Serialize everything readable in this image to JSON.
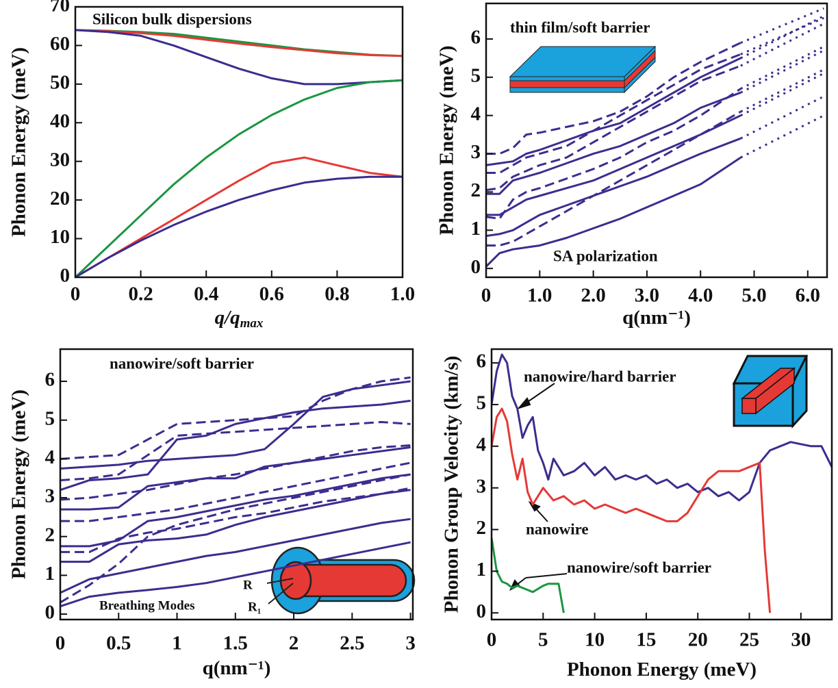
{
  "chart_data": [
    {
      "type": "line",
      "title": "Silicon bulk dispersions",
      "y_label": "Phonon Energy (meV)",
      "x_label": "q/q",
      "x_label_sub": "max",
      "xlim": [
        0,
        1
      ],
      "ylim": [
        0,
        70
      ],
      "xticks": [
        0,
        0.2,
        0.4,
        0.6,
        0.8,
        {
          "value": 1,
          "label": "1.0"
        }
      ],
      "yticks": [
        0,
        10,
        20,
        30,
        40,
        50,
        60,
        70
      ],
      "x": [
        0,
        0.1,
        0.2,
        0.3,
        0.4,
        0.5,
        0.6,
        0.7,
        0.8,
        0.9,
        1.0
      ],
      "series": [
        {
          "color": "#1a9641",
          "dash": "solid",
          "values": [
            64,
            63.8,
            63.5,
            63,
            62,
            61,
            60,
            59,
            58.3,
            57.6,
            57.3
          ]
        },
        {
          "color": "#e53935",
          "dash": "solid",
          "values": [
            64,
            63.7,
            63.2,
            62.5,
            61.5,
            60.5,
            59.6,
            58.8,
            58,
            57.5,
            57.3
          ]
        },
        {
          "color": "#3b2d8f",
          "dash": "solid",
          "values": [
            64,
            63.5,
            62.5,
            60,
            57,
            54,
            51.5,
            50,
            50,
            50.5,
            51
          ]
        },
        {
          "color": "#1a9641",
          "dash": "solid",
          "values": [
            0,
            8,
            16,
            24,
            31,
            37,
            42,
            46,
            49,
            50.5,
            51
          ]
        },
        {
          "color": "#e53935",
          "dash": "solid",
          "values": [
            0,
            5,
            10,
            15,
            20,
            25,
            29.5,
            31,
            29,
            27,
            26
          ]
        },
        {
          "color": "#3b2d8f",
          "dash": "solid",
          "values": [
            0,
            5,
            9.5,
            13.5,
            17,
            20,
            22.5,
            24.5,
            25.5,
            26,
            26
          ]
        }
      ],
      "annotations": []
    },
    {
      "type": "line",
      "title": "thin film/soft barrier",
      "y_label": "Phonon Energy (meV)",
      "x_label": "q(nm⁻¹)",
      "xlim": [
        0,
        6.36
      ],
      "ylim": [
        -0.23,
        6.93
      ],
      "xticks": [
        0,
        {
          "value": 1,
          "label": "1.0"
        },
        {
          "value": 2,
          "label": "2.0"
        },
        {
          "value": 3,
          "label": "3.0"
        },
        {
          "value": 4,
          "label": "4.0"
        },
        {
          "value": 5,
          "label": "5.0"
        },
        {
          "value": 6,
          "label": "6.0"
        }
      ],
      "yticks": [
        0,
        1,
        2,
        3,
        4,
        5,
        6
      ],
      "x": [
        0,
        0.25,
        0.5,
        0.75,
        1,
        1.5,
        2,
        2.5,
        3,
        3.5,
        4,
        4.75
      ],
      "series": [
        {
          "color": "#3b2d8f",
          "dash": "solid",
          "values": [
            0.05,
            0.4,
            0.5,
            0.55,
            0.6,
            0.8,
            1.05,
            1.3,
            1.6,
            1.9,
            2.2,
            2.9
          ]
        },
        {
          "color": "#3b2d8f",
          "dash": "solid",
          "values": [
            0.85,
            0.9,
            1.0,
            1.2,
            1.4,
            1.65,
            1.9,
            2.15,
            2.4,
            2.7,
            3.0,
            3.4
          ]
        },
        {
          "color": "#3b2d8f",
          "dash": "solid",
          "values": [
            1.4,
            1.4,
            1.6,
            1.8,
            1.9,
            2.1,
            2.3,
            2.6,
            2.9,
            3.2,
            3.5,
            4.0
          ]
        },
        {
          "color": "#3b2d8f",
          "dash": "solid",
          "values": [
            1.95,
            1.95,
            2.3,
            2.4,
            2.5,
            2.75,
            3.0,
            3.2,
            3.5,
            3.8,
            4.2,
            4.6
          ]
        },
        {
          "color": "#3b2d8f",
          "dash": "solid",
          "values": [
            2.7,
            2.75,
            2.8,
            3.0,
            3.1,
            3.35,
            3.6,
            3.8,
            4.2,
            4.6,
            5.0,
            5.5
          ]
        },
        {
          "color": "#3b2d8f",
          "dash": "dashed",
          "values": [
            0.6,
            0.6,
            0.7,
            0.9,
            1.1,
            1.5,
            1.9,
            2.3,
            2.7,
            3.1,
            3.5,
            4.1
          ]
        },
        {
          "color": "#3b2d8f",
          "dash": "dashed",
          "values": [
            1.35,
            1.3,
            1.8,
            2.0,
            2.1,
            2.35,
            2.6,
            2.9,
            3.3,
            3.6,
            4.0,
            4.7
          ]
        },
        {
          "color": "#3b2d8f",
          "dash": "dashed",
          "values": [
            2.05,
            2.1,
            2.4,
            2.55,
            2.7,
            2.9,
            3.3,
            3.7,
            4.1,
            4.5,
            4.9,
            5.3
          ]
        },
        {
          "color": "#3b2d8f",
          "dash": "dashed",
          "values": [
            2.5,
            2.5,
            2.7,
            2.9,
            3.0,
            3.2,
            3.6,
            4.0,
            4.4,
            4.8,
            5.2,
            5.6
          ]
        },
        {
          "color": "#3b2d8f",
          "dash": "dashed",
          "values": [
            3.0,
            3.0,
            3.15,
            3.5,
            3.55,
            3.7,
            3.85,
            4.1,
            4.5,
            5.0,
            5.4,
            5.9
          ]
        },
        {
          "color": "#3b2d8f",
          "dash": "dotted",
          "x": [
            4.75,
            6.3
          ],
          "values": [
            2.9,
            4.0
          ]
        },
        {
          "color": "#3b2d8f",
          "dash": "dotted",
          "x": [
            4.75,
            6.3
          ],
          "values": [
            3.4,
            4.5
          ]
        },
        {
          "color": "#3b2d8f",
          "dash": "dotted",
          "x": [
            4.75,
            6.3
          ],
          "values": [
            4.0,
            5.1
          ]
        },
        {
          "color": "#3b2d8f",
          "dash": "dotted",
          "x": [
            4.75,
            6.3
          ],
          "values": [
            4.6,
            5.7
          ]
        },
        {
          "color": "#3b2d8f",
          "dash": "dotted",
          "x": [
            4.75,
            6.3
          ],
          "values": [
            5.5,
            6.6
          ]
        },
        {
          "color": "#3b2d8f",
          "dash": "dotted",
          "x": [
            4.75,
            6.3
          ],
          "values": [
            4.1,
            5.2
          ]
        },
        {
          "color": "#3b2d8f",
          "dash": "dotted",
          "x": [
            4.75,
            6.3
          ],
          "values": [
            4.7,
            5.8
          ]
        },
        {
          "color": "#3b2d8f",
          "dash": "dotted",
          "x": [
            4.75,
            6.3
          ],
          "values": [
            5.3,
            6.4
          ]
        },
        {
          "color": "#3b2d8f",
          "dash": "dotted",
          "x": [
            4.75,
            6.3
          ],
          "values": [
            5.6,
            6.55
          ]
        },
        {
          "color": "#3b2d8f",
          "dash": "dotted",
          "x": [
            4.75,
            6.3
          ],
          "values": [
            5.9,
            6.8
          ]
        }
      ],
      "annotations": [
        "SA polarization"
      ]
    },
    {
      "type": "line",
      "title": "nanowire/soft barrier",
      "y_label": "Phonon Energy (meV)",
      "x_label": "q(nm⁻¹)",
      "xlim": [
        0,
        3.02
      ],
      "ylim": [
        -0.14,
        6.83
      ],
      "xticks": [
        0,
        0.5,
        1,
        1.5,
        2,
        2.5,
        3
      ],
      "yticks": [
        0,
        1,
        2,
        3,
        4,
        5,
        6
      ],
      "x": [
        0,
        0.25,
        0.5,
        0.75,
        1,
        1.25,
        1.5,
        1.75,
        2,
        2.25,
        2.5,
        2.75,
        3
      ],
      "series": [
        {
          "color": "#3b2d8f",
          "dash": "solid",
          "values": [
            0.2,
            0.45,
            0.55,
            0.62,
            0.7,
            0.8,
            0.95,
            1.1,
            1.25,
            1.4,
            1.55,
            1.7,
            1.85
          ]
        },
        {
          "color": "#3b2d8f",
          "dash": "solid",
          "values": [
            0.55,
            0.9,
            1.05,
            1.2,
            1.35,
            1.5,
            1.6,
            1.75,
            1.9,
            2.05,
            2.2,
            2.35,
            2.45
          ]
        },
        {
          "color": "#3b2d8f",
          "dash": "solid",
          "values": [
            1.35,
            1.35,
            1.8,
            1.9,
            1.95,
            2.05,
            2.3,
            2.5,
            2.65,
            2.8,
            2.95,
            3.1,
            3.2
          ]
        },
        {
          "color": "#3b2d8f",
          "dash": "solid",
          "values": [
            1.75,
            1.75,
            1.9,
            2.4,
            2.5,
            2.65,
            2.8,
            2.95,
            3.05,
            3.2,
            3.35,
            3.5,
            3.6
          ]
        },
        {
          "color": "#3b2d8f",
          "dash": "solid",
          "values": [
            2.7,
            2.7,
            2.75,
            3.3,
            3.4,
            3.5,
            3.5,
            3.8,
            3.9,
            4.0,
            4.1,
            4.2,
            4.3
          ]
        },
        {
          "color": "#3b2d8f",
          "dash": "solid",
          "values": [
            3.2,
            3.45,
            3.5,
            3.6,
            4.5,
            4.6,
            4.9,
            5.05,
            5.2,
            5.3,
            5.35,
            5.4,
            5.5
          ]
        },
        {
          "color": "#3b2d8f",
          "dash": "solid",
          "values": [
            3.75,
            3.8,
            3.85,
            3.95,
            4.0,
            4.05,
            4.1,
            4.25,
            4.9,
            5.6,
            5.8,
            5.9,
            6.0
          ]
        },
        {
          "color": "#3b2d8f",
          "dash": "dashed",
          "values": [
            0.3,
            0.75,
            1.3,
            2.0,
            2.3,
            2.5,
            2.7,
            2.85,
            3.0,
            3.15,
            3.3,
            3.45,
            3.6
          ]
        },
        {
          "color": "#3b2d8f",
          "dash": "dashed",
          "values": [
            1.6,
            1.6,
            1.95,
            2.1,
            2.2,
            2.35,
            2.5,
            2.6,
            2.75,
            2.9,
            3.0,
            3.1,
            3.25
          ]
        },
        {
          "color": "#3b2d8f",
          "dash": "dashed",
          "values": [
            2.4,
            2.4,
            2.5,
            2.6,
            2.7,
            2.85,
            3.0,
            3.15,
            3.3,
            3.45,
            3.6,
            3.75,
            3.9
          ]
        },
        {
          "color": "#3b2d8f",
          "dash": "dashed",
          "values": [
            2.95,
            3.0,
            3.1,
            3.2,
            3.35,
            3.5,
            3.6,
            3.75,
            3.9,
            4.05,
            4.2,
            4.3,
            4.35
          ]
        },
        {
          "color": "#3b2d8f",
          "dash": "dashed",
          "values": [
            3.45,
            3.5,
            3.6,
            4.1,
            4.6,
            4.65,
            4.7,
            4.75,
            4.8,
            4.85,
            4.9,
            4.95,
            4.9
          ]
        },
        {
          "color": "#3b2d8f",
          "dash": "dashed",
          "values": [
            4.0,
            4.05,
            4.1,
            4.5,
            4.9,
            4.95,
            5.0,
            5.05,
            5.1,
            5.5,
            5.8,
            6.0,
            6.1
          ]
        }
      ],
      "annotations": [
        "Breathing Modes",
        "R",
        "R₁"
      ]
    },
    {
      "type": "line",
      "y_label": "Phonon Group Velocity (km/s)",
      "x_label": "Phonon Energy (meV)",
      "xlim": [
        0,
        33
      ],
      "ylim": [
        -0.16,
        6.33
      ],
      "xticks": [
        0,
        5,
        10,
        15,
        20,
        25,
        30
      ],
      "yticks": [
        0,
        1,
        2,
        3,
        4,
        5,
        6
      ],
      "series": [
        {
          "color": "#3b2d8f",
          "dash": "solid",
          "x": [
            0,
            0.5,
            1,
            1.5,
            2,
            2.5,
            3,
            3.5,
            4,
            4.5,
            5,
            5.5,
            6,
            7,
            8,
            9,
            10,
            11,
            12,
            13,
            14,
            15,
            16,
            17,
            18,
            19,
            20,
            21,
            22,
            23,
            24,
            25,
            26,
            27,
            28,
            29,
            30,
            31,
            32,
            33
          ],
          "values": [
            5.0,
            5.8,
            6.2,
            6.0,
            5.2,
            4.9,
            4.2,
            4.5,
            4.7,
            3.9,
            3.6,
            3.2,
            3.7,
            3.3,
            3.4,
            3.6,
            3.3,
            3.5,
            3.2,
            3.3,
            3.2,
            3.3,
            3.1,
            3.2,
            3.0,
            3.1,
            2.9,
            3.0,
            2.8,
            2.9,
            2.7,
            2.9,
            3.6,
            3.9,
            4.0,
            4.1,
            4.05,
            4.0,
            4.0,
            3.5
          ]
        },
        {
          "color": "#e53935",
          "dash": "solid",
          "x": [
            0,
            0.5,
            1,
            1.5,
            2,
            2.5,
            3,
            3.5,
            4,
            5,
            6,
            7,
            8,
            9,
            10,
            11,
            12,
            13,
            14,
            15,
            16,
            17,
            18,
            19,
            20,
            21,
            22,
            23,
            24,
            25,
            26,
            26.5,
            27
          ],
          "values": [
            4.0,
            4.7,
            4.9,
            4.6,
            3.8,
            3.2,
            3.7,
            2.9,
            2.6,
            3.0,
            2.7,
            2.8,
            2.6,
            2.7,
            2.5,
            2.6,
            2.5,
            2.4,
            2.5,
            2.4,
            2.3,
            2.2,
            2.2,
            2.4,
            2.8,
            3.2,
            3.4,
            3.4,
            3.4,
            3.5,
            3.6,
            1.5,
            0
          ]
        },
        {
          "color": "#1a9641",
          "dash": "solid",
          "x": [
            0,
            0.5,
            1,
            1.5,
            2,
            2.5,
            3,
            3.5,
            4,
            5,
            5.5,
            6,
            6.5,
            7
          ],
          "values": [
            1.8,
            1.0,
            0.75,
            0.7,
            0.6,
            0.65,
            0.6,
            0.55,
            0.5,
            0.65,
            0.7,
            0.7,
            0.7,
            0
          ]
        }
      ],
      "annotations": [
        "nanowire/hard barrier",
        "nanowire",
        "nanowire/soft barrier"
      ]
    }
  ]
}
